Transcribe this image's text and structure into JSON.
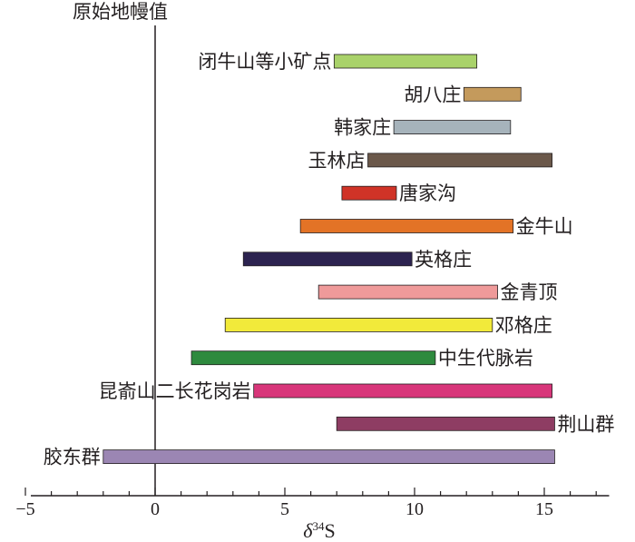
{
  "chart_data": {
    "type": "range-bar",
    "title": "",
    "xlabel": "δ34S",
    "xlabel_parts": {
      "delta": "δ",
      "sup": "34",
      "element": "S"
    },
    "xlim": [
      -5,
      17.5
    ],
    "xticks": [
      -5,
      0,
      5,
      10,
      15
    ],
    "xtick_labels": [
      "−5",
      "0",
      "5",
      "10",
      "15"
    ],
    "reference_line": {
      "x": 0,
      "label": "原始地幔值"
    },
    "grid": false,
    "series": [
      {
        "name": "闭牛山等小矿点",
        "min": 6.9,
        "max": 12.4,
        "color": "#a9d26a",
        "label_side": "left"
      },
      {
        "name": "胡八庄",
        "min": 11.9,
        "max": 14.1,
        "color": "#c49a5c",
        "label_side": "left"
      },
      {
        "name": "韩家庄",
        "min": 9.2,
        "max": 13.7,
        "color": "#a6b3bb",
        "label_side": "left"
      },
      {
        "name": "玉林店",
        "min": 8.2,
        "max": 15.3,
        "color": "#6b584a",
        "label_side": "left"
      },
      {
        "name": "唐家沟",
        "min": 7.2,
        "max": 9.3,
        "color": "#d03327",
        "label_side": "right"
      },
      {
        "name": "金牛山",
        "min": 5.6,
        "max": 13.8,
        "color": "#e37326",
        "label_side": "right"
      },
      {
        "name": "英格庄",
        "min": 3.4,
        "max": 9.9,
        "color": "#2c2350",
        "label_side": "right"
      },
      {
        "name": "金青顶",
        "min": 6.3,
        "max": 13.2,
        "color": "#ef9a9a",
        "label_side": "right"
      },
      {
        "name": "邓格庄",
        "min": 2.7,
        "max": 13.0,
        "color": "#f2ea3a",
        "label_side": "right"
      },
      {
        "name": "中生代脉岩",
        "min": 1.4,
        "max": 10.8,
        "color": "#2e8a3e",
        "label_side": "right"
      },
      {
        "name": "昆嵛山二长花岗岩",
        "min": 3.8,
        "max": 15.3,
        "color": "#d8367a",
        "label_side": "left"
      },
      {
        "name": "荆山群",
        "min": 7.0,
        "max": 15.4,
        "color": "#8e3d63",
        "label_side": "right"
      },
      {
        "name": "胶东群",
        "min": -2.0,
        "max": 15.4,
        "color": "#9b86b3",
        "label_side": "left"
      }
    ]
  }
}
